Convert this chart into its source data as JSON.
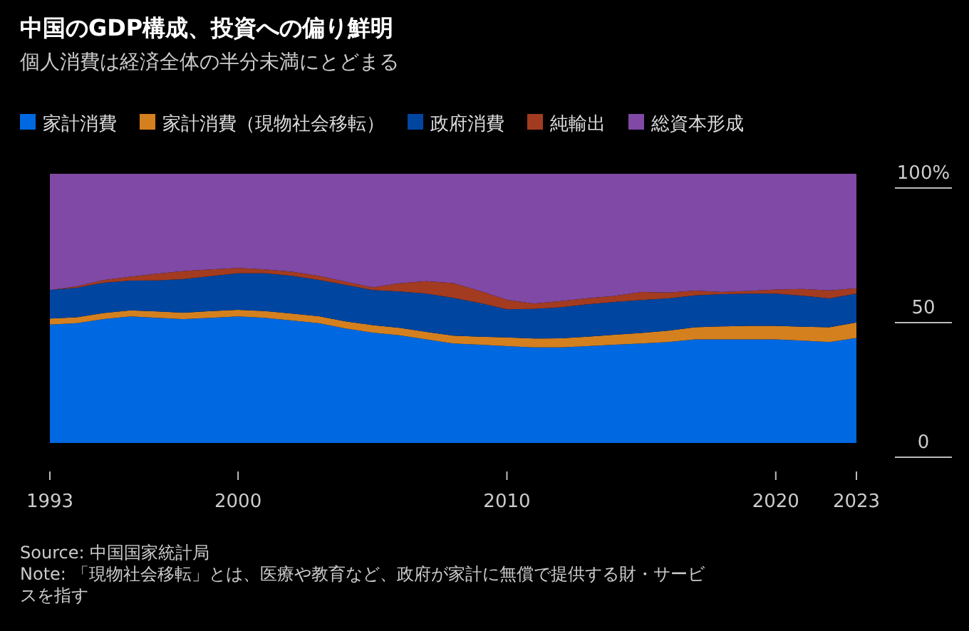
{
  "chart_data": {
    "type": "area",
    "stacked": true,
    "title": "中国のGDP構成、投資への偏り鮮明",
    "subtitle": "個人消費は経済全体の半分未満にとどまる",
    "x": [
      1993,
      1994,
      1995,
      1996,
      1997,
      1998,
      1999,
      2000,
      2001,
      2002,
      2003,
      2004,
      2005,
      2006,
      2007,
      2008,
      2009,
      2010,
      2011,
      2012,
      2013,
      2014,
      2015,
      2016,
      2017,
      2018,
      2019,
      2020,
      2021,
      2022,
      2023
    ],
    "series": [
      {
        "name": "家計消費",
        "color": "#0068e0",
        "values": [
          44,
          44.5,
          46,
          47,
          46.5,
          46,
          46.5,
          47,
          46.5,
          45.5,
          44.5,
          42.5,
          41,
          40,
          38.5,
          37,
          36.5,
          36,
          35.5,
          35.5,
          36,
          36.5,
          37,
          37.5,
          38.5,
          38.5,
          38.5,
          38.5,
          38,
          37.5,
          39
        ]
      },
      {
        "name": "家計消費（現物社会移転）",
        "color": "#d4801f",
        "values": [
          2.2,
          2.2,
          2.3,
          2.3,
          2.4,
          2.4,
          2.5,
          2.5,
          2.5,
          2.6,
          2.6,
          2.7,
          2.8,
          2.8,
          2.8,
          2.9,
          3,
          3.2,
          3.3,
          3.4,
          3.5,
          3.7,
          3.9,
          4.2,
          4.5,
          4.8,
          5,
          5,
          5.2,
          5.5,
          5.8
        ]
      },
      {
        "name": "政府消費",
        "color": "#0045a0",
        "values": [
          10.6,
          11,
          11.2,
          11,
          11.5,
          12.5,
          13,
          13.5,
          14,
          14,
          13.5,
          13.5,
          13,
          13.5,
          14.2,
          14,
          12.5,
          10.5,
          11,
          11.5,
          12,
          12.2,
          12.2,
          12,
          11.8,
          12,
          12,
          12,
          11.5,
          10.7,
          10.7
        ]
      },
      {
        "name": "純輸出",
        "color": "#a23b1f",
        "values": [
          0,
          0.5,
          1,
          1.5,
          2.5,
          3,
          2.5,
          2,
          1.5,
          1.5,
          1.5,
          1.2,
          1,
          3,
          4.6,
          5.5,
          4.5,
          3.5,
          2,
          2.3,
          2.3,
          2.2,
          3,
          2.2,
          1.8,
          0.8,
          1,
          1.5,
          2.5,
          3,
          2
        ]
      },
      {
        "name": "総資本形成",
        "color": "#8049a5",
        "values": [
          43.2,
          41.8,
          39.5,
          38.2,
          37.1,
          36.1,
          35.5,
          35,
          35.5,
          36.4,
          37.9,
          40.1,
          42.2,
          40.7,
          39.9,
          40.6,
          43.5,
          46.8,
          48.2,
          47.3,
          46.2,
          45.4,
          43.9,
          44.1,
          43.4,
          43.9,
          43.5,
          43,
          42.8,
          43.3,
          42.5
        ]
      }
    ],
    "xlim": [
      1993,
      2023
    ],
    "xticks": [
      1993,
      2000,
      2010,
      2020,
      2023
    ],
    "ylim": [
      0,
      100
    ],
    "yticks": [
      0,
      50,
      {
        "value": 100,
        "label": "100%"
      }
    ],
    "legend": "top left",
    "grid": false,
    "annotations": [
      "Source: 中国国家統計局",
      "Note: 「現物社会移転」とは、医療や教育など、政府が家計に無償で提供する財・サービスを指す"
    ]
  }
}
